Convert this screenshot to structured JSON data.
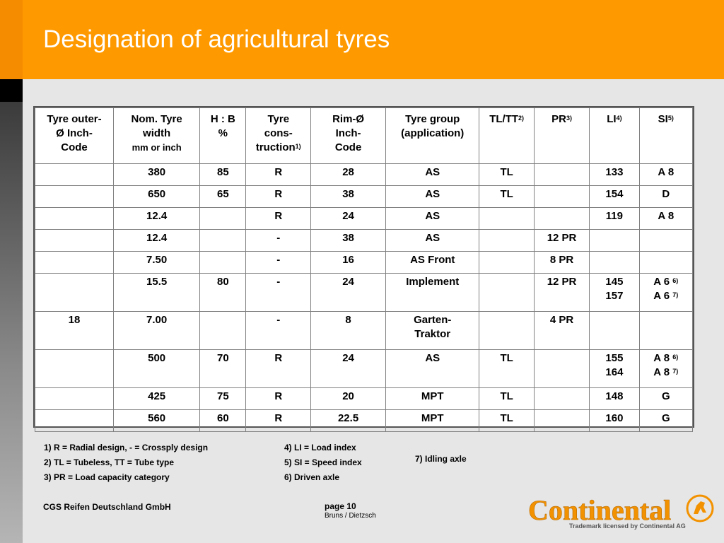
{
  "slide": {
    "title": "Designation of agricultural tyres",
    "company": "CGS Reifen Deutschland GmbH",
    "page": "page 10",
    "author": "Bruns / Dietzsch",
    "logo_text": "Continental",
    "trademark": "Trademark licensed by Continental AG",
    "colors": {
      "header": "#ff9900",
      "logo": "#f39200"
    }
  },
  "table": {
    "headers": [
      {
        "lines": [
          "Tyre outer-",
          "Ø Inch-",
          "Code"
        ]
      },
      {
        "lines": [
          "Nom. Tyre",
          "width"
        ],
        "small": "mm or inch"
      },
      {
        "lines": [
          "H : B",
          "%"
        ]
      },
      {
        "lines": [
          "Tyre",
          "cons-",
          "truction"
        ],
        "sup": "1)"
      },
      {
        "lines": [
          "Rim-Ø",
          "Inch-",
          "Code"
        ]
      },
      {
        "lines": [
          "Tyre group",
          "(application)"
        ]
      },
      {
        "lines": [
          "TL/TT"
        ],
        "sup": "2)"
      },
      {
        "lines": [
          "PR"
        ],
        "sup": "3)"
      },
      {
        "lines": [
          "LI"
        ],
        "sup": "4)"
      },
      {
        "lines": [
          "SI"
        ],
        "sup": "5)"
      }
    ],
    "rows": [
      [
        "",
        "380",
        "85",
        "R",
        "28",
        "AS",
        "TL",
        "",
        "133",
        "A 8"
      ],
      [
        "",
        "650",
        "65",
        "R",
        "38",
        "AS",
        "TL",
        "",
        "154",
        "D"
      ],
      [
        "",
        "12.4",
        "",
        "R",
        "24",
        "AS",
        "",
        "",
        "119",
        "A 8"
      ],
      [
        "",
        "12.4",
        "",
        "-",
        "38",
        "AS",
        "",
        "12 PR",
        "",
        ""
      ],
      [
        "",
        "7.50",
        "",
        "-",
        "16",
        "AS Front",
        "",
        "8 PR",
        "",
        ""
      ],
      [
        "",
        "15.5",
        "80",
        "-",
        "24",
        "Implement",
        "",
        "12 PR",
        "145\n157",
        "A 6 6)\nA 6 7)"
      ],
      [
        "18",
        "7.00",
        "",
        "-",
        "8",
        "Garten-\nTraktor",
        "",
        "4 PR",
        "",
        ""
      ],
      [
        "",
        "500",
        "70",
        "R",
        "24",
        "AS",
        "TL",
        "",
        "155\n164",
        "A 8 6)\nA 8 7)"
      ],
      [
        "",
        "425",
        "75",
        "R",
        "20",
        "MPT",
        "TL",
        "",
        "148",
        "G"
      ],
      [
        "",
        "560",
        "60",
        "R",
        "22.5",
        "MPT",
        "TL",
        "",
        "160",
        "G"
      ]
    ]
  },
  "footnotes": {
    "f1": "1) R     = Radial design, - = Crossply design",
    "f2": "2) TL   = Tubeless, TT = Tube type",
    "f3": "3) PR  = Load capacity category",
    "f4": "4) LI    = Load index",
    "f5": "5) SI = Speed index",
    "f6": "6) Driven axle",
    "f7": "7) Idling axle"
  }
}
